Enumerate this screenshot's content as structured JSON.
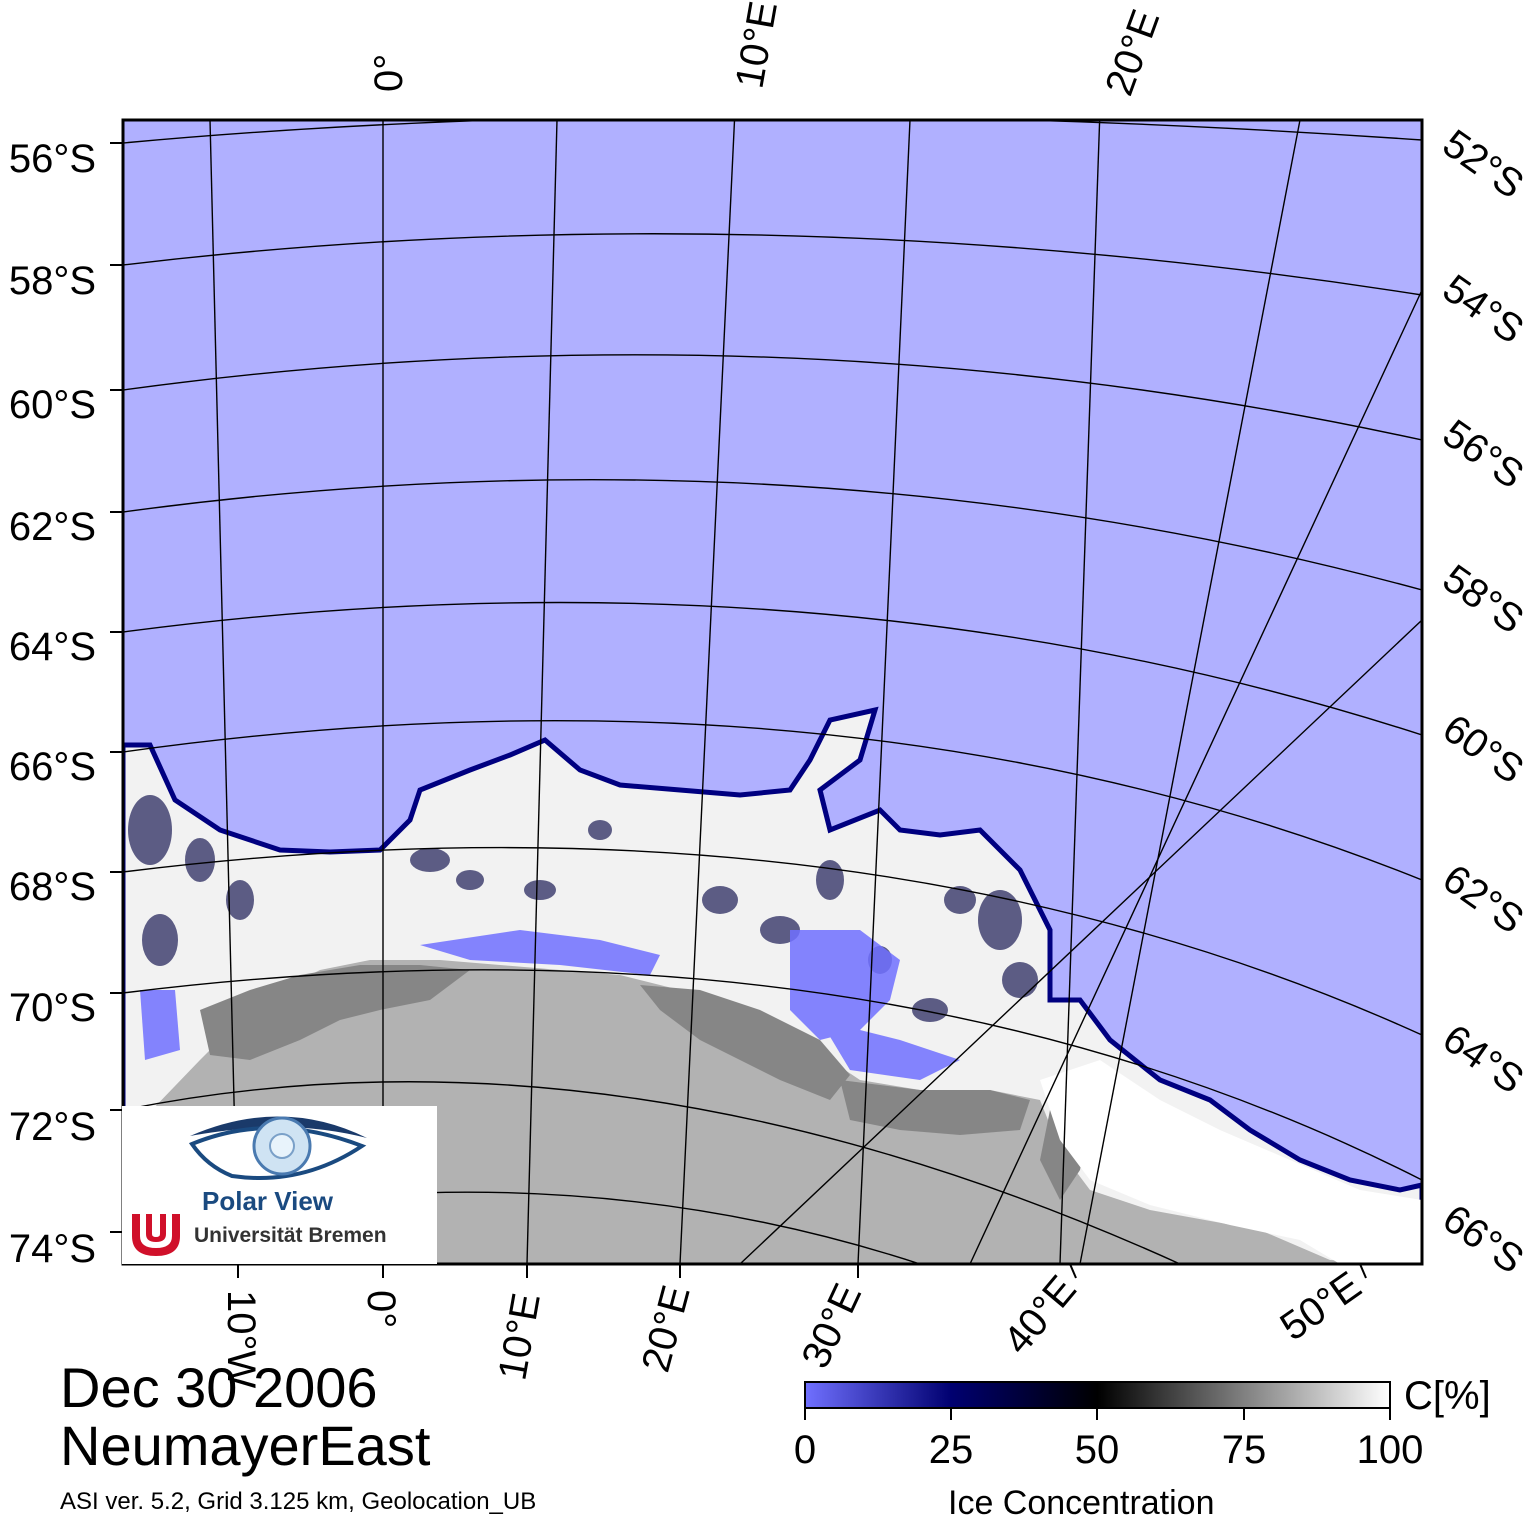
{
  "map": {
    "date": "Dec 30 2006",
    "region": "NeumayerEast",
    "info": "ASI ver. 5.2,  Grid 3.125 km, Geolocation_UB",
    "colors": {
      "open_water": "#b0b0ff",
      "land": "#b2b2b2",
      "ice_shelf": "#868686",
      "low_conc": "#0000a0",
      "high_conc": "#ffffff"
    },
    "lat_labels_left": [
      "56°S",
      "58°S",
      "60°S",
      "62°S",
      "64°S",
      "66°S",
      "68°S",
      "70°S",
      "72°S",
      "74°S"
    ],
    "lat_labels_right": [
      "52°S",
      "54°S",
      "56°S",
      "58°S",
      "60°S",
      "62°S",
      "64°S",
      "66°S"
    ],
    "lon_labels_top": [
      "0°",
      "10°E",
      "20°E"
    ],
    "lon_labels_bottom": [
      "10°W",
      "0°",
      "10°E",
      "20°E",
      "30°E",
      "40°E",
      "50°E"
    ]
  },
  "colorbar": {
    "title": "Ice Concentration",
    "unit": "C[%]",
    "ticks": [
      "0",
      "25",
      "50",
      "75",
      "100"
    ],
    "range": [
      0,
      100
    ],
    "stops": [
      "#7070ff",
      "#000060",
      "#000000",
      "#808080",
      "#ffffff"
    ]
  },
  "logo": {
    "name": "Polar View",
    "institution": "Universität Bremen"
  }
}
